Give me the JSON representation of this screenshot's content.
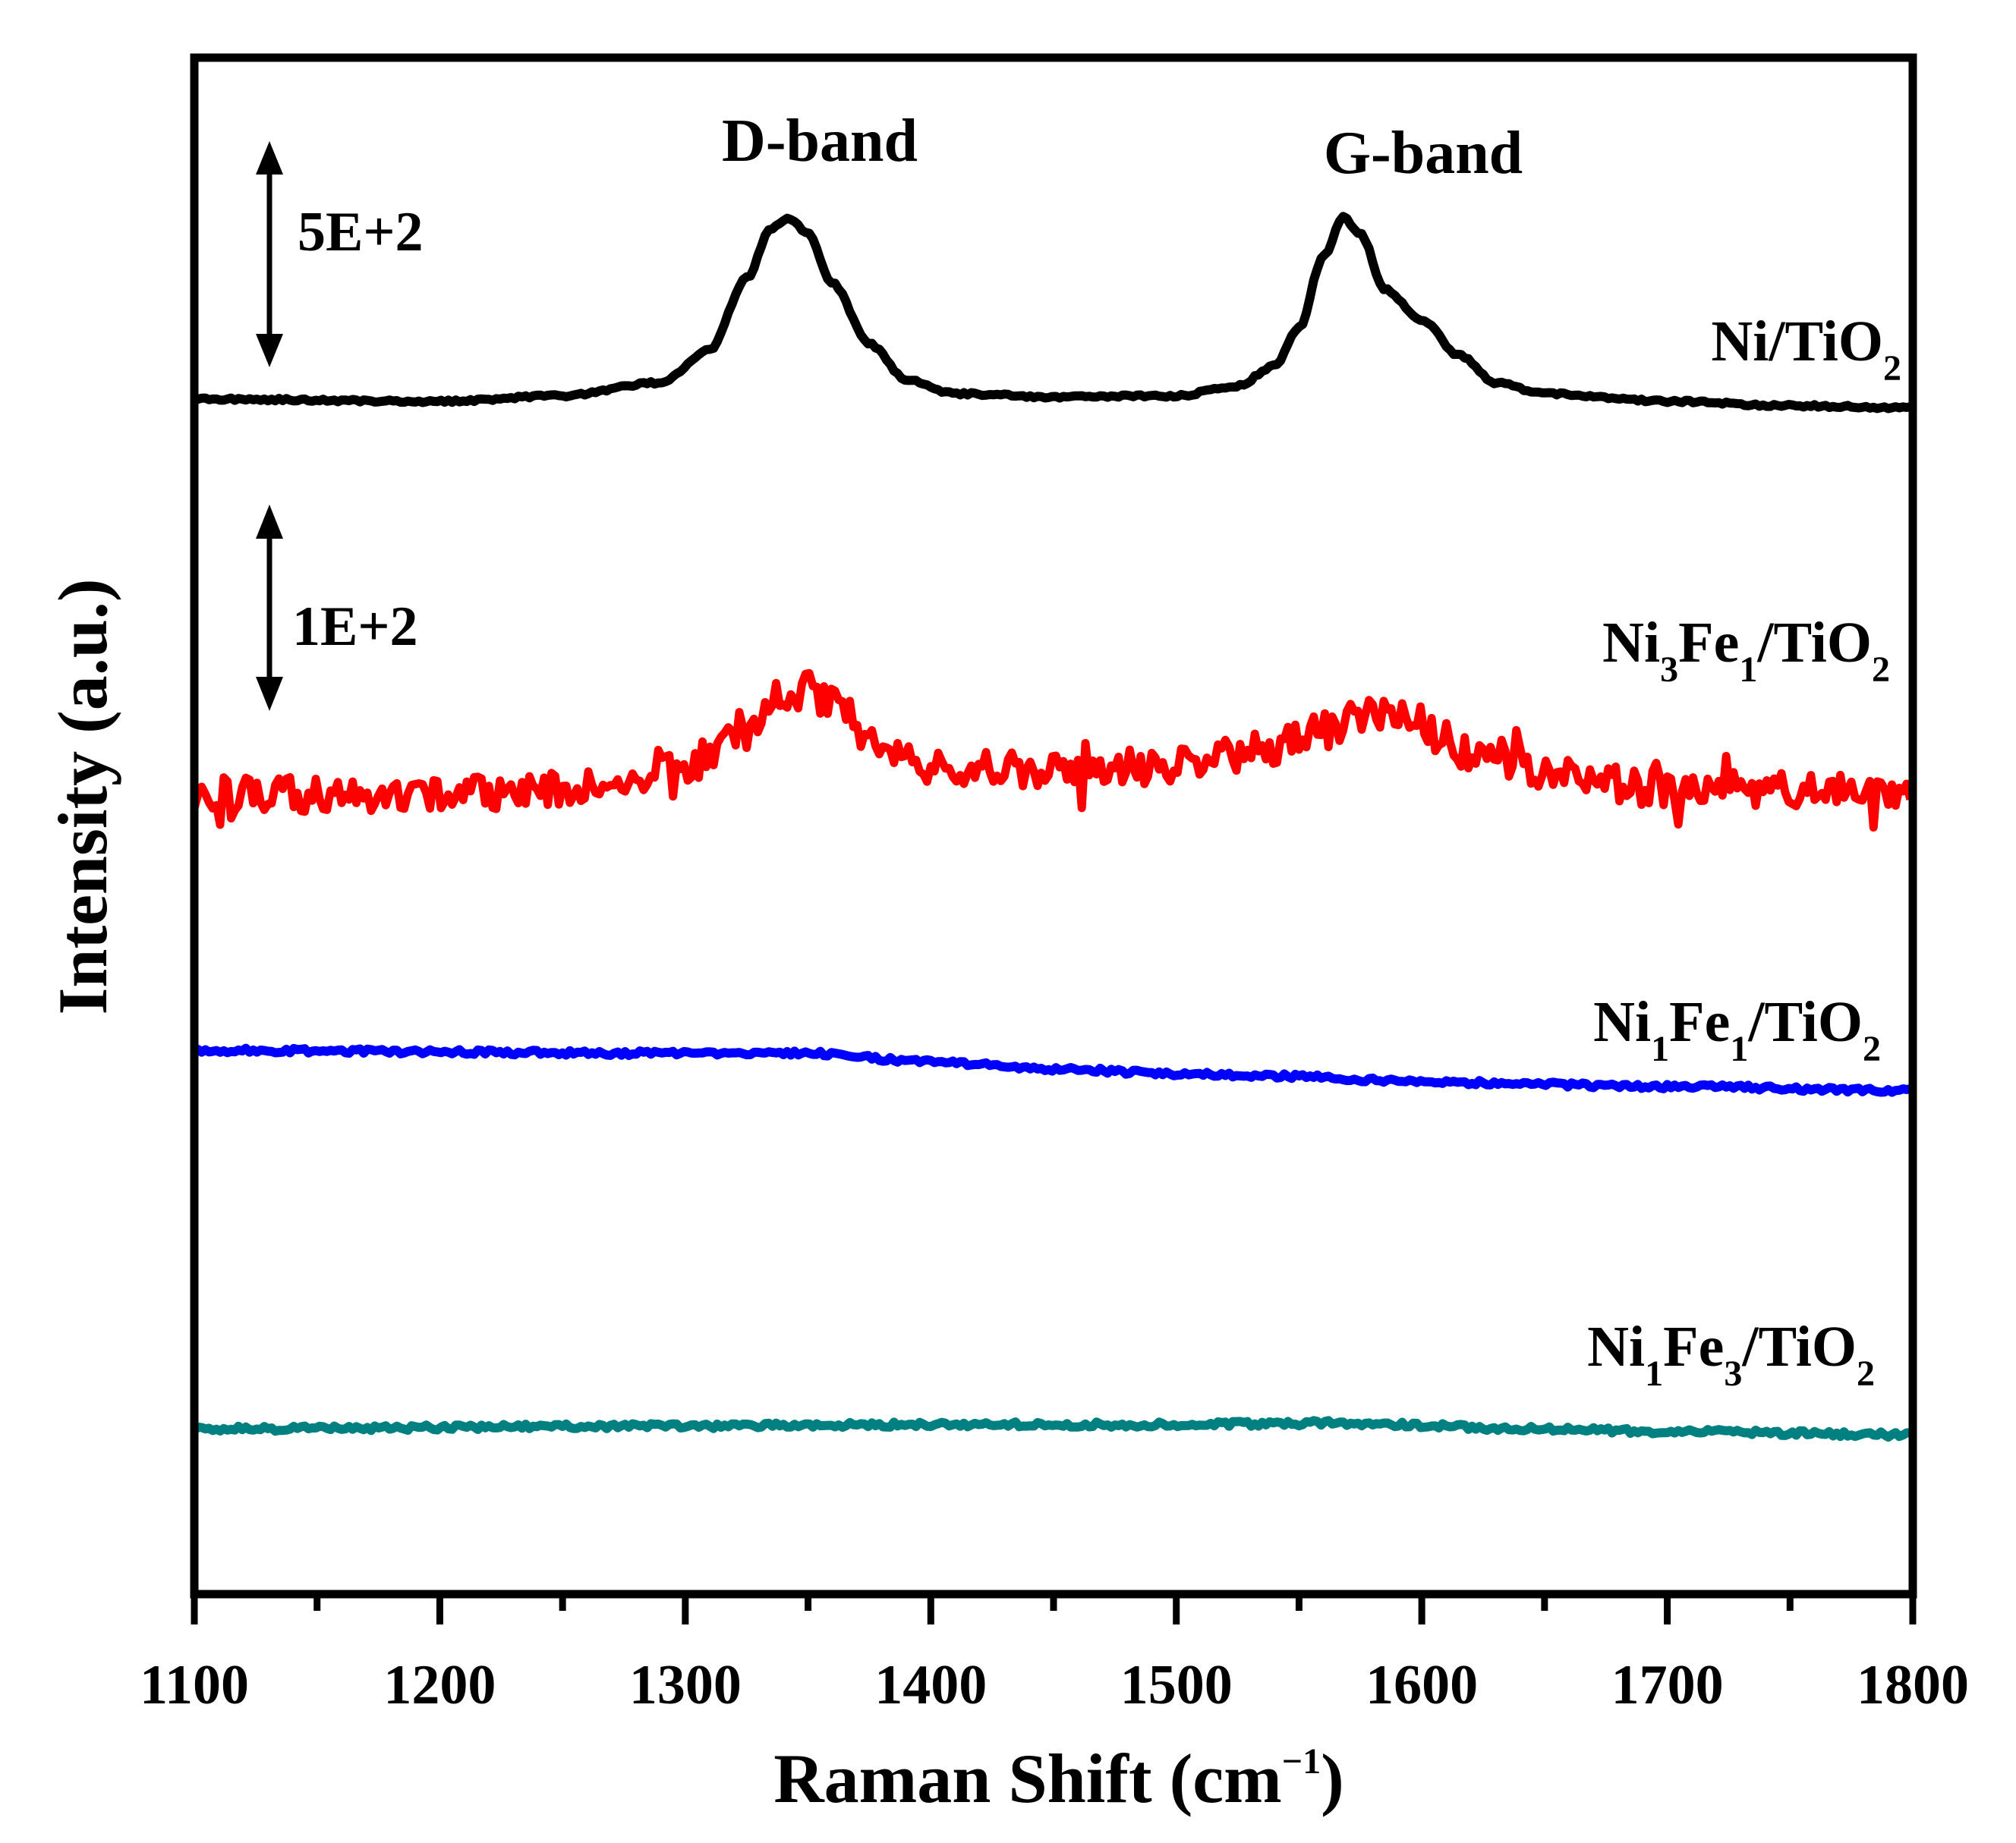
{
  "chart_data": {
    "type": "line",
    "title": "",
    "xlabel": {
      "main": "Raman Shift (cm",
      "sup": "−1",
      "close": ")"
    },
    "ylabel": "Intensity (a.u.)",
    "xlim": [
      1100,
      1800
    ],
    "x_ticks": [
      "1100",
      "1200",
      "1300",
      "1400",
      "1500",
      "1600",
      "1700",
      "1800"
    ],
    "y_ticks": [],
    "grid": false,
    "annotations": {
      "d_band": "D-band",
      "g_band": "G-band",
      "scale_top": "5E+2",
      "scale_mid": "1E+2"
    },
    "series": [
      {
        "name": "Ni/TiO2",
        "label_parts": [
          "Ni/TiO",
          "2"
        ],
        "color": "#000000",
        "offset_rank": 0,
        "noise": 1.2,
        "points": [
          [
            1100,
            0
          ],
          [
            1200,
            -2
          ],
          [
            1250,
            3
          ],
          [
            1290,
            15
          ],
          [
            1310,
            45
          ],
          [
            1325,
            110
          ],
          [
            1335,
            155
          ],
          [
            1342,
            165
          ],
          [
            1350,
            150
          ],
          [
            1360,
            105
          ],
          [
            1375,
            50
          ],
          [
            1390,
            18
          ],
          [
            1410,
            5
          ],
          [
            1450,
            2
          ],
          [
            1500,
            3
          ],
          [
            1525,
            12
          ],
          [
            1540,
            30
          ],
          [
            1550,
            65
          ],
          [
            1560,
            130
          ],
          [
            1568,
            165
          ],
          [
            1575,
            150
          ],
          [
            1585,
            100
          ],
          [
            1600,
            72
          ],
          [
            1615,
            40
          ],
          [
            1630,
            15
          ],
          [
            1650,
            5
          ],
          [
            1700,
            -2
          ],
          [
            1750,
            -6
          ],
          [
            1800,
            -8
          ]
        ]
      },
      {
        "name": "Ni3Fe1/TiO2",
        "label_parts": [
          "Ni",
          "3",
          "Fe",
          "1",
          "/TiO",
          "2"
        ],
        "color": "#ff0000",
        "offset_rank": 1,
        "noise": 15,
        "points": [
          [
            1100,
            5
          ],
          [
            1200,
            5
          ],
          [
            1280,
            15
          ],
          [
            1300,
            30
          ],
          [
            1320,
            50
          ],
          [
            1340,
            80
          ],
          [
            1350,
            95
          ],
          [
            1360,
            80
          ],
          [
            1380,
            45
          ],
          [
            1400,
            30
          ],
          [
            1450,
            25
          ],
          [
            1500,
            30
          ],
          [
            1540,
            45
          ],
          [
            1560,
            60
          ],
          [
            1580,
            75
          ],
          [
            1600,
            65
          ],
          [
            1620,
            40
          ],
          [
            1650,
            22
          ],
          [
            1700,
            10
          ],
          [
            1750,
            10
          ],
          [
            1800,
            8
          ]
        ]
      },
      {
        "name": "Ni1Fe1/TiO2",
        "label_parts": [
          "Ni",
          "1",
          "Fe",
          "1",
          "/TiO",
          "2"
        ],
        "color": "#0000ff",
        "offset_rank": 2,
        "noise": 1.6,
        "points": [
          [
            1100,
            24
          ],
          [
            1300,
            22
          ],
          [
            1350,
            22
          ],
          [
            1400,
            16
          ],
          [
            1450,
            11
          ],
          [
            1500,
            8
          ],
          [
            1550,
            6
          ],
          [
            1600,
            2
          ],
          [
            1700,
            -1
          ],
          [
            1800,
            -4
          ]
        ]
      },
      {
        "name": "Ni1Fe3/TiO2",
        "label_parts": [
          "Ni",
          "1",
          "Fe",
          "3",
          "/TiO",
          "2"
        ],
        "color": "#008080",
        "offset_rank": 3,
        "noise": 1.8,
        "points": [
          [
            1100,
            2
          ],
          [
            1300,
            4
          ],
          [
            1400,
            5
          ],
          [
            1500,
            5
          ],
          [
            1560,
            6
          ],
          [
            1650,
            2
          ],
          [
            1700,
            0
          ],
          [
            1800,
            -2
          ]
        ]
      }
    ]
  }
}
